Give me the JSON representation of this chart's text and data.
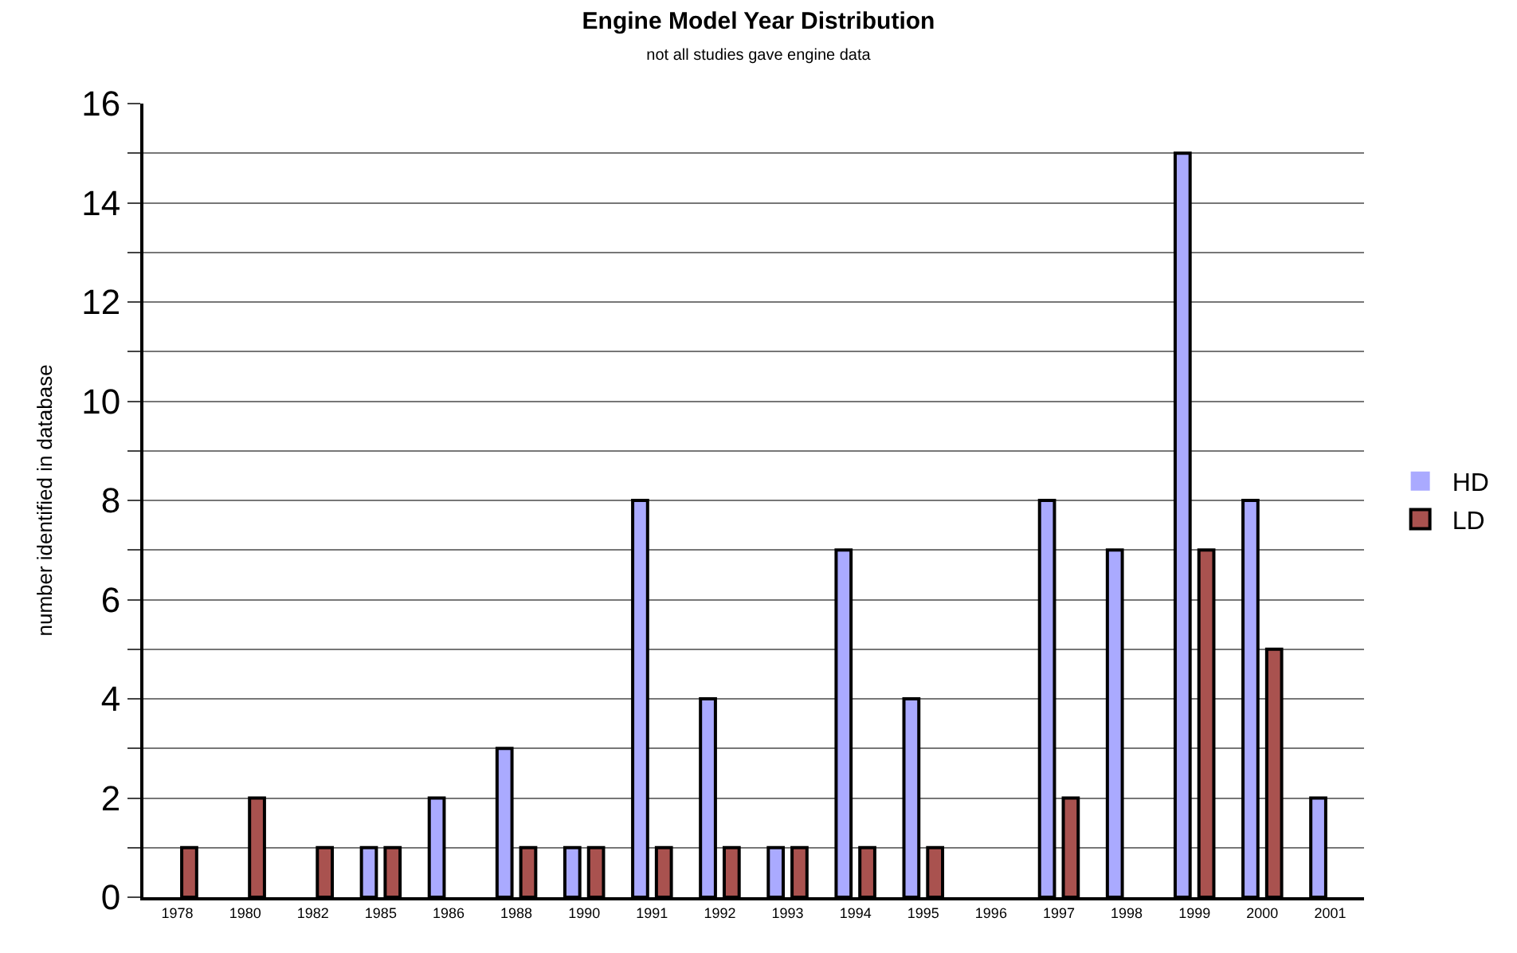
{
  "chart_data": {
    "type": "bar",
    "title": "Engine Model Year Distribution",
    "subtitle": "not all studies gave engine data",
    "ylabel": "number identified in database",
    "categories": [
      "1978",
      "1980",
      "1982",
      "1985",
      "1986",
      "1988",
      "1990",
      "1991",
      "1992",
      "1993",
      "1994",
      "1995",
      "1996",
      "1997",
      "1998",
      "1999",
      "2000",
      "2001"
    ],
    "series": [
      {
        "name": "HD",
        "color": "#aaaaff",
        "values": [
          0,
          0,
          0,
          1,
          2,
          3,
          1,
          8,
          4,
          1,
          7,
          4,
          0,
          8,
          7,
          15,
          8,
          2
        ]
      },
      {
        "name": "LD",
        "color": "#a9524f",
        "values": [
          1,
          2,
          1,
          1,
          0,
          1,
          1,
          1,
          1,
          1,
          1,
          1,
          0,
          2,
          0,
          7,
          5,
          0
        ]
      }
    ],
    "ylim": [
      0,
      16
    ],
    "yticks": [
      0,
      {
        "value": 1,
        "label": null
      },
      2,
      {
        "value": 3,
        "label": null
      },
      4,
      {
        "value": 5,
        "label": null
      },
      6,
      {
        "value": 7,
        "label": null
      },
      8,
      {
        "value": 9,
        "label": null
      },
      10,
      {
        "value": 11,
        "label": null
      },
      12,
      {
        "value": 13,
        "label": null
      },
      14,
      {
        "value": 15,
        "label": null
      },
      16
    ],
    "grid": "y",
    "legend": "right"
  }
}
